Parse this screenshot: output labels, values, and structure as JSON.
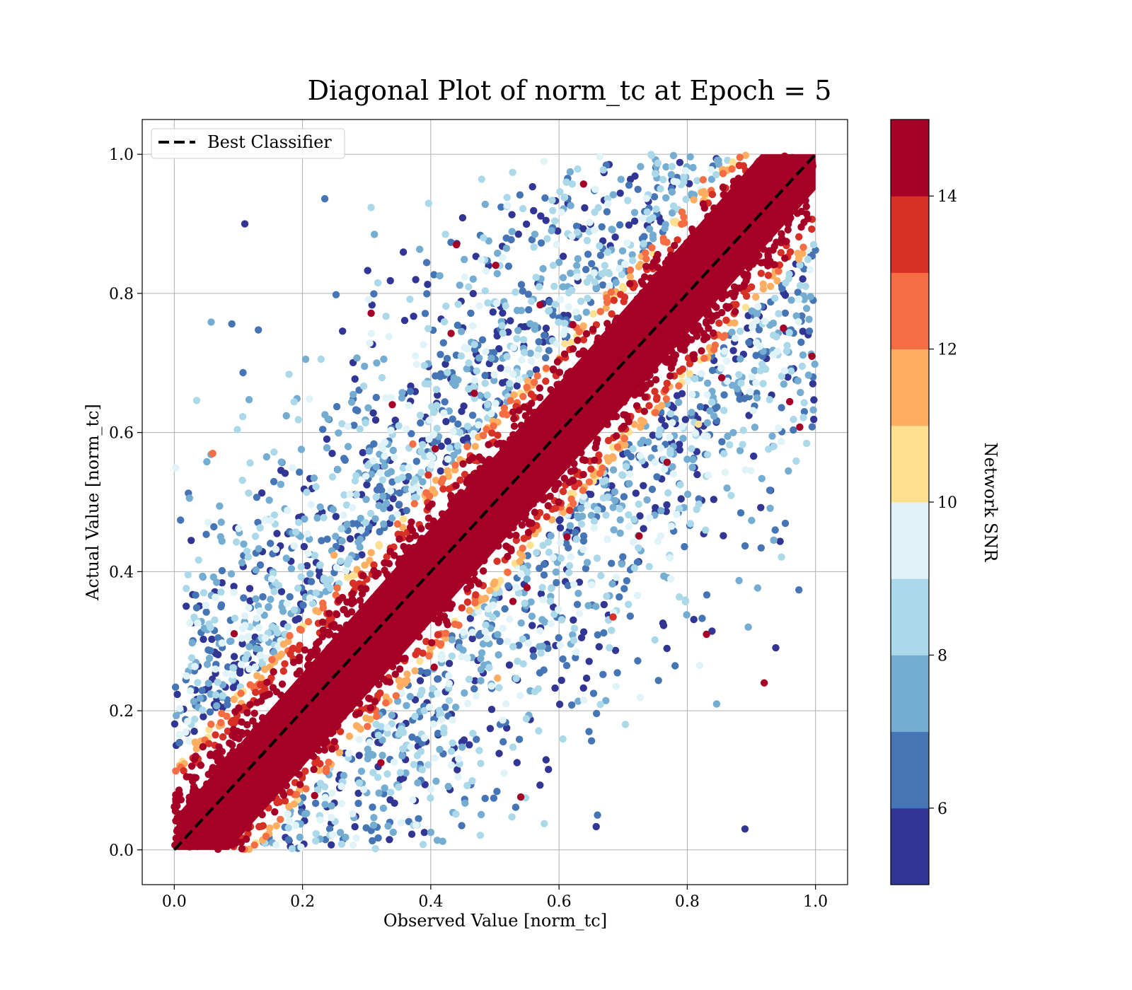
{
  "chart_data": {
    "type": "scatter",
    "title": "Diagonal Plot of norm_tc at Epoch = 5",
    "xlabel": "Observed Value [norm_tc]",
    "ylabel": "Actual Value [norm_tc]",
    "xlim": [
      -0.05,
      1.05
    ],
    "ylim": [
      -0.05,
      1.05
    ],
    "xticks": [
      "0.0",
      "0.2",
      "0.4",
      "0.6",
      "0.8",
      "1.0"
    ],
    "yticks": [
      "0.0",
      "0.2",
      "0.4",
      "0.6",
      "0.8",
      "1.0"
    ],
    "grid": true,
    "legend": {
      "placement": "top-left",
      "entries": [
        {
          "label": "Best Classifier",
          "style": "black dashed line"
        }
      ]
    },
    "reference_line": {
      "label": "Best Classifier",
      "x": [
        0,
        1
      ],
      "y": [
        0,
        1
      ]
    },
    "colorbar": {
      "label": "Network SNR",
      "range": [
        5,
        15
      ],
      "ticks": [
        "6",
        "8",
        "10",
        "12",
        "14"
      ],
      "tick_values": [
        6,
        8,
        10,
        12,
        14
      ],
      "colormap": "RdYlBu_r",
      "colors": [
        "#313695",
        "#4575b4",
        "#74add1",
        "#abd9e9",
        "#e0f3f8",
        "#fee090",
        "#fdae61",
        "#f46d43",
        "#d73027",
        "#a50026"
      ]
    },
    "series": [
      {
        "description_points": [
          {
            "x": 0.34,
            "y": 0.64,
            "snr": 15
          },
          {
            "x": 0.44,
            "y": 0.87,
            "snr": 15
          },
          {
            "x": 0.83,
            "y": 0.31,
            "snr": 15
          },
          {
            "x": 0.92,
            "y": 0.24,
            "snr": 15
          },
          {
            "x": 0.06,
            "y": 0.57,
            "snr": 12
          },
          {
            "x": 0.95,
            "y": 0.75,
            "snr": 15
          },
          {
            "x": 0.11,
            "y": 0.9,
            "snr": 5
          },
          {
            "x": 0.89,
            "y": 0.03,
            "snr": 5
          },
          {
            "x": 0.15,
            "y": 0.36,
            "snr": 7
          },
          {
            "x": 0.66,
            "y": 0.05,
            "snr": 6
          }
        ]
      }
    ]
  }
}
